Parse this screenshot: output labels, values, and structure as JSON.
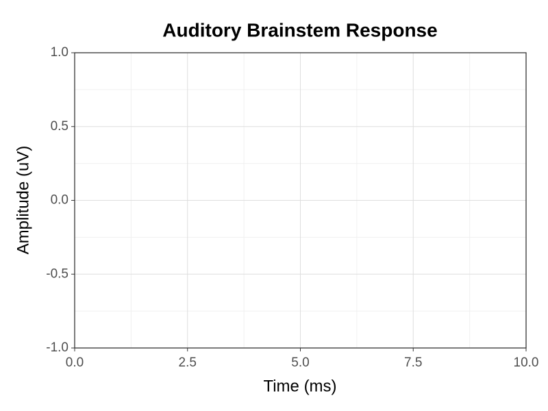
{
  "chart_data": {
    "type": "line",
    "title": "Auditory Brainstem Response",
    "x_label": "Time (ms)",
    "y_label": "Amplitude (uV)",
    "xlim": [
      0,
      10
    ],
    "ylim": [
      -1,
      1
    ],
    "xticks": [
      {
        "value": 0,
        "label": "0.0"
      },
      2.5,
      {
        "value": 5,
        "label": "5.0"
      },
      7.5,
      {
        "value": 10,
        "label": "10.0"
      }
    ],
    "yticks": [
      {
        "value": -1,
        "label": "-1.0"
      },
      {
        "value": -0.5,
        "label": "-0.5"
      },
      {
        "value": 0,
        "label": "0.0"
      },
      {
        "value": 0.5,
        "label": "0.5"
      },
      {
        "value": 1,
        "label": "1.0"
      }
    ],
    "grid": true
  }
}
